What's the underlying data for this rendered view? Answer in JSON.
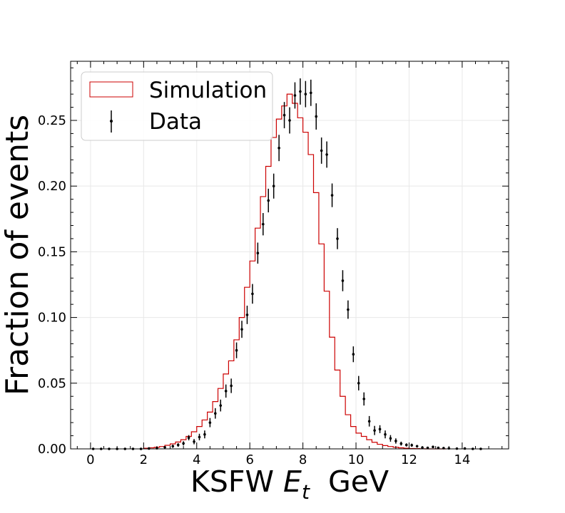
{
  "chart_data": {
    "type": "histogram",
    "xlabel": "KSFW E_t  GeV",
    "xlabel_parts": {
      "prefix": "KSFW ",
      "var": "E",
      "sub": "t",
      "suffix": "  GeV"
    },
    "ylabel": "Fraction of events",
    "xlim": [
      -0.75,
      15.75
    ],
    "ylim": [
      0,
      0.295
    ],
    "xticks": [
      0,
      2,
      4,
      6,
      8,
      10,
      12,
      14
    ],
    "yticks": [
      0.0,
      0.05,
      0.1,
      0.15,
      0.2,
      0.25
    ],
    "ytick_labels": [
      "0.00",
      "0.05",
      "0.10",
      "0.15",
      "0.20",
      "0.25"
    ],
    "grid": true,
    "legend_position": "upper left",
    "legend": [
      {
        "label": "Simulation",
        "style": "step",
        "color": "#d62728"
      },
      {
        "label": "Data",
        "style": "errorbar",
        "color": "#000000"
      }
    ],
    "series": [
      {
        "name": "Simulation",
        "style": "step",
        "color": "#cc0000",
        "bin_edges": [
          2.0,
          2.2,
          2.4,
          2.6,
          2.8,
          3.0,
          3.2,
          3.4,
          3.6,
          3.8,
          4.0,
          4.2,
          4.4,
          4.6,
          4.8,
          5.0,
          5.2,
          5.4,
          5.6,
          5.8,
          6.0,
          6.2,
          6.4,
          6.6,
          6.8,
          7.0,
          7.2,
          7.4,
          7.6,
          7.8,
          8.0,
          8.2,
          8.4,
          8.6,
          8.8,
          9.0,
          9.2,
          9.4,
          9.6,
          9.8,
          10.0,
          10.2,
          10.4,
          10.6,
          10.8,
          11.0,
          11.2,
          11.4,
          11.6,
          11.8,
          12.0,
          12.2,
          12.4,
          12.6,
          12.8,
          13.0,
          13.2,
          13.4
        ],
        "values": [
          0.0005,
          0.0008,
          0.0012,
          0.0018,
          0.0027,
          0.0038,
          0.0052,
          0.007,
          0.0095,
          0.013,
          0.017,
          0.022,
          0.028,
          0.036,
          0.046,
          0.057,
          0.067,
          0.083,
          0.1,
          0.123,
          0.143,
          0.168,
          0.192,
          0.215,
          0.237,
          0.251,
          0.261,
          0.27,
          0.263,
          0.252,
          0.241,
          0.224,
          0.195,
          0.156,
          0.12,
          0.085,
          0.06,
          0.04,
          0.026,
          0.017,
          0.012,
          0.0095,
          0.007,
          0.005,
          0.0035,
          0.0025,
          0.0018,
          0.0012,
          0.0008,
          0.0005,
          0.0003,
          0.0002,
          0.0001,
          0.0,
          0.0,
          0.0,
          0.0
        ]
      },
      {
        "name": "Data",
        "style": "errorbar",
        "color": "#000000",
        "x": [
          0.1,
          0.4,
          0.7,
          1.0,
          1.3,
          1.6,
          1.9,
          2.2,
          2.5,
          2.8,
          3.1,
          3.3,
          3.5,
          3.7,
          3.9,
          4.1,
          4.3,
          4.5,
          4.7,
          4.9,
          5.1,
          5.3,
          5.5,
          5.7,
          5.9,
          6.1,
          6.3,
          6.5,
          6.7,
          6.9,
          7.1,
          7.3,
          7.5,
          7.7,
          7.9,
          8.1,
          8.3,
          8.5,
          8.7,
          8.9,
          9.1,
          9.3,
          9.5,
          9.7,
          9.9,
          10.1,
          10.3,
          10.5,
          10.7,
          10.9,
          11.1,
          11.3,
          11.5,
          11.7,
          11.9,
          12.1,
          12.3,
          12.5,
          12.7,
          12.9,
          13.1,
          13.3,
          13.5,
          13.8,
          14.1,
          14.4,
          14.7
        ],
        "y": [
          0.0,
          0.0,
          0.0,
          0.0,
          0.0,
          0.0,
          0.0,
          0.0003,
          0.0005,
          0.0012,
          0.002,
          0.003,
          0.0042,
          0.0085,
          0.0055,
          0.009,
          0.011,
          0.02,
          0.027,
          0.033,
          0.044,
          0.048,
          0.075,
          0.091,
          0.102,
          0.118,
          0.149,
          0.171,
          0.189,
          0.2,
          0.229,
          0.254,
          0.25,
          0.269,
          0.272,
          0.27,
          0.271,
          0.253,
          0.227,
          0.224,
          0.193,
          0.16,
          0.128,
          0.106,
          0.072,
          0.05,
          0.038,
          0.021,
          0.014,
          0.015,
          0.011,
          0.008,
          0.006,
          0.004,
          0.003,
          0.0028,
          0.002,
          0.001,
          0.0008,
          0.0015,
          0.0008,
          0.0006,
          0.0004,
          0.0002,
          0.0003,
          0.0,
          0.0
        ],
        "yerr": [
          0.0005,
          0.0005,
          0.0005,
          0.0005,
          0.0005,
          0.0005,
          0.0005,
          0.0006,
          0.0008,
          0.001,
          0.0012,
          0.0014,
          0.0016,
          0.002,
          0.002,
          0.0025,
          0.003,
          0.0035,
          0.004,
          0.0045,
          0.005,
          0.0055,
          0.006,
          0.0065,
          0.007,
          0.0075,
          0.008,
          0.0085,
          0.009,
          0.0095,
          0.01,
          0.01,
          0.01,
          0.01,
          0.01,
          0.01,
          0.01,
          0.01,
          0.01,
          0.01,
          0.009,
          0.008,
          0.008,
          0.007,
          0.006,
          0.0055,
          0.005,
          0.004,
          0.0035,
          0.003,
          0.003,
          0.0025,
          0.002,
          0.0015,
          0.0012,
          0.0012,
          0.001,
          0.0008,
          0.0008,
          0.0008,
          0.0006,
          0.0006,
          0.0005,
          0.0005,
          0.0005,
          0.0005,
          0.0005
        ]
      }
    ]
  }
}
